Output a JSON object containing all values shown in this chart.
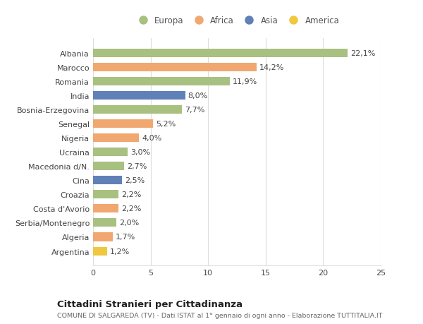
{
  "categories": [
    "Albania",
    "Marocco",
    "Romania",
    "India",
    "Bosnia-Erzegovina",
    "Senegal",
    "Nigeria",
    "Ucraina",
    "Macedonia d/N.",
    "Cina",
    "Croazia",
    "Costa d'Avorio",
    "Serbia/Montenegro",
    "Algeria",
    "Argentina"
  ],
  "values": [
    22.1,
    14.2,
    11.9,
    8.0,
    7.7,
    5.2,
    4.0,
    3.0,
    2.7,
    2.5,
    2.2,
    2.2,
    2.0,
    1.7,
    1.2
  ],
  "labels": [
    "22,1%",
    "14,2%",
    "11,9%",
    "8,0%",
    "7,7%",
    "5,2%",
    "4,0%",
    "3,0%",
    "2,7%",
    "2,5%",
    "2,2%",
    "2,2%",
    "2,0%",
    "1,7%",
    "1,2%"
  ],
  "continents": [
    "Europa",
    "Africa",
    "Europa",
    "Asia",
    "Europa",
    "Africa",
    "Africa",
    "Europa",
    "Europa",
    "Asia",
    "Europa",
    "Africa",
    "Europa",
    "Africa",
    "America"
  ],
  "continent_colors": {
    "Europa": "#a8c080",
    "Africa": "#f0a870",
    "Asia": "#6080b8",
    "America": "#f0c840"
  },
  "legend_items": [
    "Europa",
    "Africa",
    "Asia",
    "America"
  ],
  "legend_colors": [
    "#a8c080",
    "#f0a870",
    "#6080b8",
    "#f0c840"
  ],
  "title": "Cittadini Stranieri per Cittadinanza",
  "subtitle": "COMUNE DI SALGAREDA (TV) - Dati ISTAT al 1° gennaio di ogni anno - Elaborazione TUTTITALIA.IT",
  "xlim": [
    0,
    25
  ],
  "xticks": [
    0,
    5,
    10,
    15,
    20,
    25
  ],
  "background_color": "#ffffff",
  "grid_color": "#dddddd",
  "bar_height": 0.6,
  "label_fontsize": 8.0,
  "tick_fontsize": 8.0,
  "title_fontsize": 9.5,
  "subtitle_fontsize": 6.8,
  "legend_fontsize": 8.5
}
